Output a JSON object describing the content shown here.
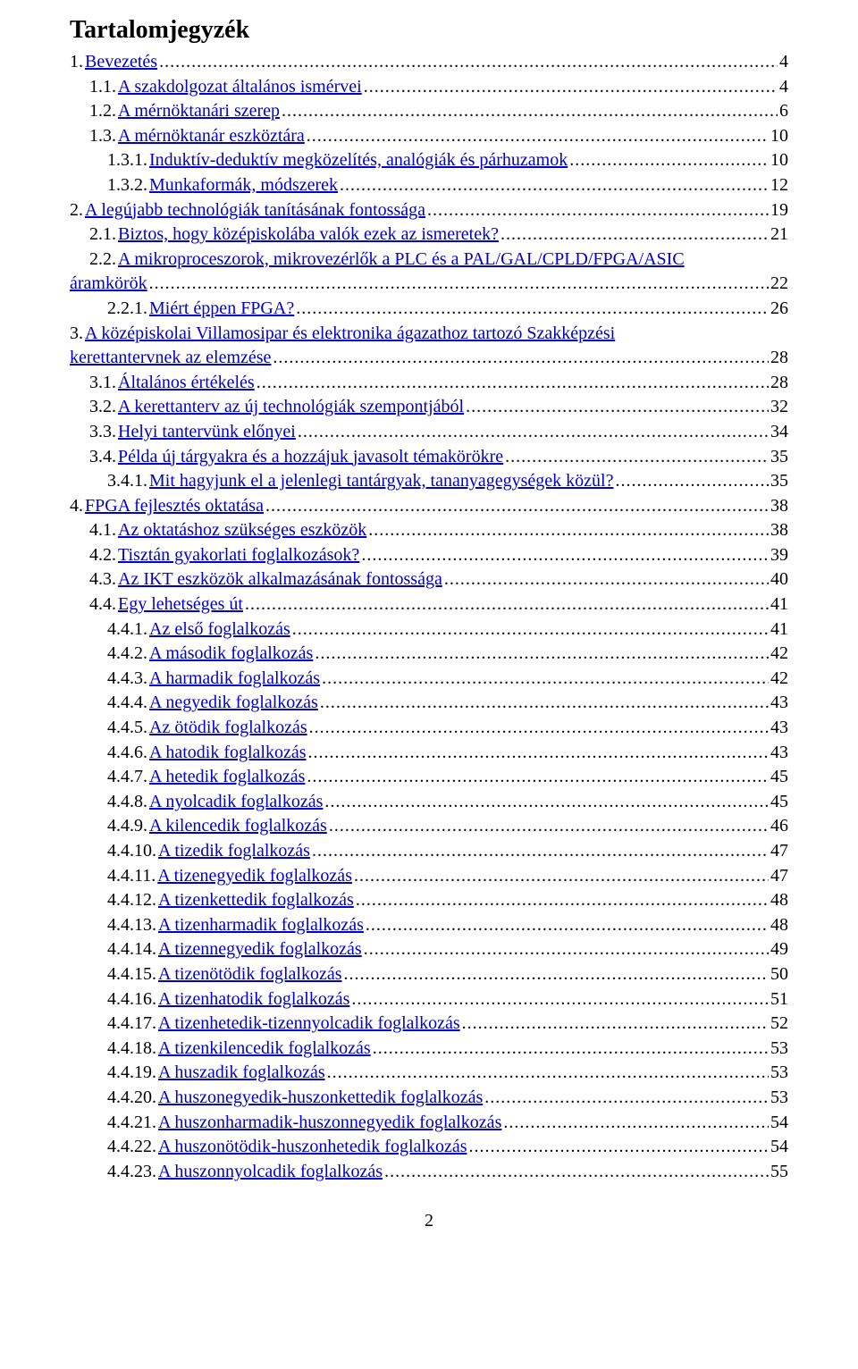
{
  "title": "Tartalomjegyzék",
  "page_number": "2",
  "entries": [
    {
      "indent": 0,
      "prefix": "1.",
      "label": " Bevezetés",
      "page": "4"
    },
    {
      "indent": 1,
      "prefix": "1.1.",
      "label": " A szakdolgozat általános ismérvei",
      "page": "4"
    },
    {
      "indent": 1,
      "prefix": "1.2.",
      "label": " A mérnöktanári szerep",
      "page": "6"
    },
    {
      "indent": 1,
      "prefix": "1.3.",
      "label": " A mérnöktanár eszköztára",
      "page": "10"
    },
    {
      "indent": 2,
      "prefix": "1.3.1.",
      "label": " Induktív-deduktív megközelítés, analógiák és párhuzamok",
      "page": "10"
    },
    {
      "indent": 2,
      "prefix": "1.3.2.",
      "label": " Munkaformák, módszerek",
      "page": "12"
    },
    {
      "indent": 0,
      "prefix": "2.",
      "label": " A legújabb technológiák tanításának fontossága",
      "page": "19"
    },
    {
      "indent": 1,
      "prefix": "2.1.",
      "label": " Biztos, hogy középiskolába valók ezek az ismeretek?",
      "page": "21"
    },
    {
      "indent": 1,
      "prefix": "2.2.",
      "label": " A mikroproceszorok, mikrovezérlők a PLC és a PAL/GAL/CPLD/FPGA/ASIC",
      "cont": "áramkörök",
      "page": "22"
    },
    {
      "indent": 2,
      "prefix": "2.2.1.",
      "label": " Miért éppen FPGA?",
      "page": "26"
    },
    {
      "indent": 0,
      "prefix": "3.",
      "label": " A középiskolai Villamosipar és elektronika ágazathoz tartozó Szakképzési",
      "cont": "kerettantervnek az elemzése",
      "cont_indent": 0,
      "page": "28"
    },
    {
      "indent": 1,
      "prefix": "3.1.",
      "label": " Általános értékelés",
      "page": "28"
    },
    {
      "indent": 1,
      "prefix": "3.2.",
      "label": " A kerettanterv az új technológiák szempontjából",
      "page": "32"
    },
    {
      "indent": 1,
      "prefix": "3.3.",
      "label": " Helyi tantervünk előnyei",
      "page": "34"
    },
    {
      "indent": 1,
      "prefix": "3.4.",
      "label": " Példa új tárgyakra és a hozzájuk javasolt témakörökre",
      "page": "35"
    },
    {
      "indent": 2,
      "prefix": "3.4.1.",
      "label": " Mit hagyjunk el a jelenlegi tantárgyak, tananyagegységek közül?",
      "page": "35"
    },
    {
      "indent": 0,
      "prefix": "4.",
      "label": " FPGA fejlesztés oktatása",
      "page": "38"
    },
    {
      "indent": 1,
      "prefix": "4.1.",
      "label": " Az oktatáshoz szükséges eszközök",
      "page": "38"
    },
    {
      "indent": 1,
      "prefix": "4.2.",
      "label": " Tisztán gyakorlati foglalkozások?",
      "page": "39"
    },
    {
      "indent": 1,
      "prefix": "4.3.",
      "label": " Az IKT eszközök alkalmazásának fontossága",
      "page": "40"
    },
    {
      "indent": 1,
      "prefix": "4.4.",
      "label": " Egy lehetséges út",
      "page": "41"
    },
    {
      "indent": 2,
      "prefix": "4.4.1.",
      "label": "  Az első foglalkozás",
      "page": "41"
    },
    {
      "indent": 2,
      "prefix": "4.4.2.",
      "label": "  A második foglalkozás",
      "page": "42"
    },
    {
      "indent": 2,
      "prefix": "4.4.3.",
      "label": "  A harmadik foglalkozás",
      "page": "42"
    },
    {
      "indent": 2,
      "prefix": "4.4.4.",
      "label": "  A negyedik foglalkozás",
      "page": "43"
    },
    {
      "indent": 2,
      "prefix": "4.4.5.",
      "label": "  Az ötödik foglalkozás",
      "page": "43"
    },
    {
      "indent": 2,
      "prefix": "4.4.6.",
      "label": "  A hatodik foglalkozás",
      "page": "43"
    },
    {
      "indent": 2,
      "prefix": "4.4.7.",
      "label": "  A hetedik foglalkozás",
      "page": "45"
    },
    {
      "indent": 2,
      "prefix": "4.4.8.",
      "label": "  A nyolcadik foglalkozás",
      "page": "45"
    },
    {
      "indent": 2,
      "prefix": "4.4.9.",
      "label": "  A kilencedik foglalkozás",
      "page": "46"
    },
    {
      "indent": 2,
      "prefix": "4.4.10.",
      "label": "  A tizedik foglalkozás",
      "page": "47"
    },
    {
      "indent": 2,
      "prefix": "4.4.11.",
      "label": "  A tizenegyedik foglalkozás",
      "page": "47"
    },
    {
      "indent": 2,
      "prefix": "4.4.12.",
      "label": "  A tizenkettedik foglalkozás",
      "page": "48"
    },
    {
      "indent": 2,
      "prefix": "4.4.13.",
      "label": "  A tizenharmadik foglalkozás",
      "page": "48"
    },
    {
      "indent": 2,
      "prefix": "4.4.14.",
      "label": "  A tizennegyedik foglalkozás",
      "page": "49"
    },
    {
      "indent": 2,
      "prefix": "4.4.15.",
      "label": "  A tizenötödik foglalkozás",
      "page": "50"
    },
    {
      "indent": 2,
      "prefix": "4.4.16.",
      "label": "  A tizenhatodik foglalkozás",
      "page": "51"
    },
    {
      "indent": 2,
      "prefix": "4.4.17.",
      "label": "  A tizenhetedik-tizennyolcadik foglalkozás",
      "page": "52"
    },
    {
      "indent": 2,
      "prefix": "4.4.18.",
      "label": "  A tizenkilencedik foglalkozás",
      "page": "53"
    },
    {
      "indent": 2,
      "prefix": "4.4.19.",
      "label": "  A huszadik foglalkozás",
      "page": "53"
    },
    {
      "indent": 2,
      "prefix": "4.4.20.",
      "label": "  A huszonegyedik-huszonkettedik foglalkozás",
      "page": "53"
    },
    {
      "indent": 2,
      "prefix": "4.4.21.",
      "label": "  A huszonharmadik-huszonnegyedik foglalkozás",
      "page": "54"
    },
    {
      "indent": 2,
      "prefix": "4.4.22.",
      "label": "  A huszonötödik-huszonhetedik foglalkozás",
      "page": "54"
    },
    {
      "indent": 2,
      "prefix": "4.4.23.",
      "label": "  A huszonnyolcadik foglalkozás",
      "page": "55"
    }
  ]
}
